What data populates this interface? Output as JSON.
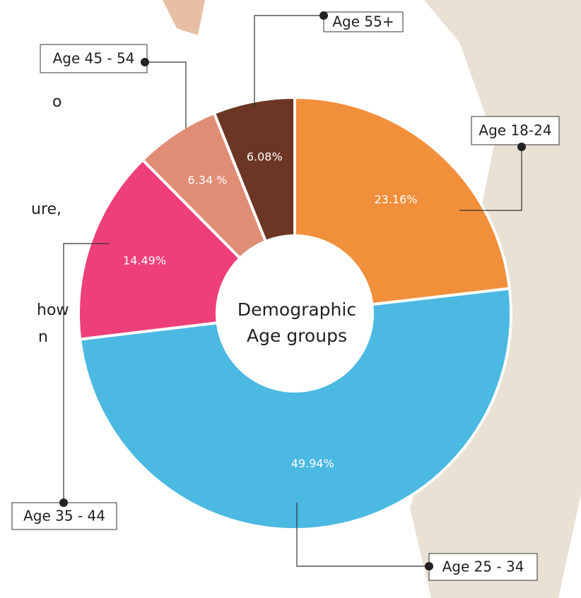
{
  "chart_data": {
    "type": "donut",
    "center_text": [
      "Demographic",
      "Age groups"
    ],
    "categories": [
      "Age 18-24",
      "Age 25 - 34",
      "Age 35 - 44",
      "Age 45 - 54",
      "Age 55+"
    ],
    "values": [
      23.16,
      49.94,
      14.49,
      6.34,
      6.08
    ],
    "value_labels": [
      "23.16%",
      "49.94%",
      "14.49%",
      "6.34 %",
      "6.08%"
    ],
    "colors": [
      "#f28f3b",
      "#4bb9e2",
      "#ee3f7a",
      "#e08d75",
      "#6b3724"
    ]
  },
  "background_text": [
    "o",
    "ure,",
    "how",
    "n"
  ]
}
